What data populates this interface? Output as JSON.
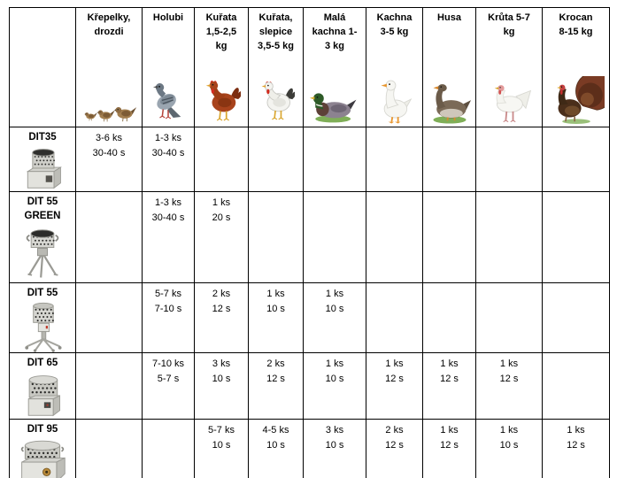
{
  "page": {
    "background": "#ffffff"
  },
  "table": {
    "corner": "",
    "columns": [
      {
        "key": "krepelky-drozdi",
        "label_lines": [
          "Křepelky,",
          "drozdi"
        ],
        "icon": "quail-thrush-birds-icon"
      },
      {
        "key": "holubi",
        "label_lines": [
          "Holubi"
        ],
        "icon": "pigeon-icon"
      },
      {
        "key": "kurata-1-5-2-5-kg",
        "label_lines": [
          "Kuřata",
          "1,5-2,5",
          "kg"
        ],
        "icon": "brown-chicken-icon"
      },
      {
        "key": "kurata-slepice-3-5-5-kg",
        "label_lines": [
          "Kuřata,",
          "slepice",
          "3,5-5 kg"
        ],
        "icon": "white-hen-icon"
      },
      {
        "key": "mala-kachna-1-3-kg",
        "label_lines": [
          "Malá",
          "kachna 1-",
          "3 kg"
        ],
        "icon": "mallard-duck-icon"
      },
      {
        "key": "kachna-3-5-kg",
        "label_lines": [
          "Kachna",
          "3-5 kg"
        ],
        "icon": "white-duck-icon"
      },
      {
        "key": "husa",
        "label_lines": [
          "Husa"
        ],
        "icon": "goose-icon"
      },
      {
        "key": "kruta-5-7-kg",
        "label_lines": [
          "Krůta 5-7",
          "kg"
        ],
        "icon": "white-turkey-icon"
      },
      {
        "key": "krocan-8-15-kg",
        "label_lines": [
          "Krocan",
          "8-15 kg"
        ],
        "icon": "dark-turkey-icon"
      }
    ],
    "rows": [
      {
        "key": "dit35",
        "machine_lines": [
          "DIT35"
        ],
        "icon": "dit35-plucker-icon",
        "cells": [
          [
            "3-6 ks",
            "30-40 s"
          ],
          [
            "1-3 ks",
            "30-40 s"
          ],
          [],
          [],
          [],
          [],
          [],
          [],
          []
        ]
      },
      {
        "key": "dit55-green",
        "machine_lines": [
          "DIT 55",
          "GREEN"
        ],
        "icon": "dit55-green-plucker-icon",
        "cells": [
          [],
          [
            "1-3 ks",
            "30-40 s"
          ],
          [
            "1 ks",
            "20 s"
          ],
          [],
          [],
          [],
          [],
          [],
          []
        ]
      },
      {
        "key": "dit55",
        "machine_lines": [
          "DIT 55"
        ],
        "icon": "dit55-plucker-icon",
        "cells": [
          [],
          [
            "5-7 ks",
            "7-10 s"
          ],
          [
            "2 ks",
            "12 s"
          ],
          [
            "1 ks",
            "10 s"
          ],
          [
            "1 ks",
            "10 s"
          ],
          [],
          [],
          [],
          []
        ]
      },
      {
        "key": "dit65",
        "machine_lines": [
          "DIT 65"
        ],
        "icon": "dit65-plucker-icon",
        "cells": [
          [],
          [
            "7-10 ks",
            "5-7 s"
          ],
          [
            "3 ks",
            "10 s"
          ],
          [
            "2 ks",
            "12 s"
          ],
          [
            "1 ks",
            "10 s"
          ],
          [
            "1 ks",
            "12 s"
          ],
          [
            "1 ks",
            "12 s"
          ],
          [
            "1 ks",
            "12 s"
          ],
          []
        ]
      },
      {
        "key": "dit95",
        "machine_lines": [
          "DIT 95"
        ],
        "icon": "dit95-plucker-icon",
        "cells": [
          [],
          [],
          [
            "5-7 ks",
            "10 s"
          ],
          [
            "4-5 ks",
            "10 s"
          ],
          [
            "3 ks",
            "10 s"
          ],
          [
            "2 ks",
            "12 s"
          ],
          [
            "1 ks",
            "12 s"
          ],
          [
            "1 ks",
            "10 s"
          ],
          [
            "1 ks",
            "12 s"
          ]
        ]
      }
    ]
  }
}
